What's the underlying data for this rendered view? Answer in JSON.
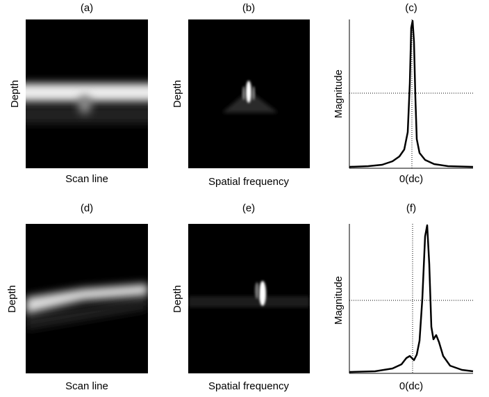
{
  "panels": [
    {
      "label": "(a)",
      "y_label": "Depth",
      "x_label": "Scan line"
    },
    {
      "label": "(b)",
      "y_label": "Depth",
      "x_label": "Spatial frequency"
    },
    {
      "label": "(c)",
      "y_label": "Magnitude",
      "x_tick": "0(dc)"
    },
    {
      "label": "(d)",
      "y_label": "Depth",
      "x_label": "Scan line"
    },
    {
      "label": "(e)",
      "y_label": "Depth",
      "x_label": "Spatial frequency"
    },
    {
      "label": "(f)",
      "y_label": "Magnitude",
      "x_tick": "0(dc)"
    }
  ]
}
